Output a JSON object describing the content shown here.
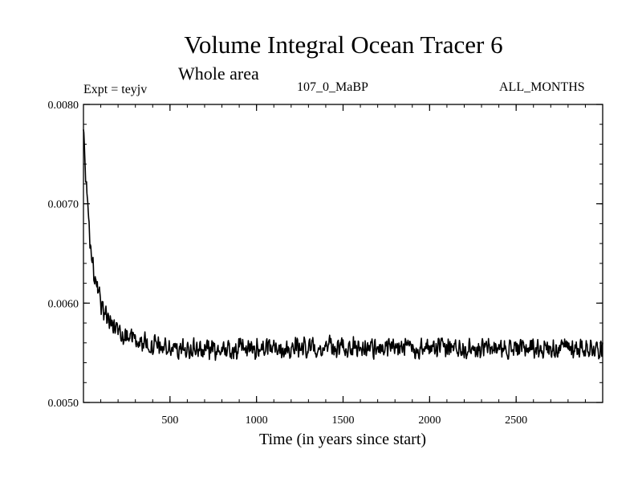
{
  "chart_data": {
    "type": "line",
    "title": "Volume Integral Ocean Tracer 6",
    "subtitle": "Whole area",
    "experiment_label": "Expt = teyjv",
    "run_label": "107_0_MaBP",
    "period_label": "ALL_MONTHS",
    "xlabel": "Time (in years since start)",
    "ylabel": "",
    "xlim": [
      0,
      3000
    ],
    "ylim": [
      0.005,
      0.008
    ],
    "x_ticks": [
      500,
      1000,
      1500,
      2000,
      2500
    ],
    "x_tick_labels": [
      "500",
      "1000",
      "1500",
      "2000",
      "2500"
    ],
    "y_ticks": [
      0.005,
      0.006,
      0.007,
      0.008
    ],
    "y_tick_labels": [
      "0.0050",
      "0.0060",
      "0.0070",
      "0.0080"
    ],
    "x_minor_step": 100,
    "y_minor_step": 0.0002,
    "grid": false,
    "series": [
      {
        "name": "Volume Integral Ocean Tracer 6",
        "color": "#000000",
        "x": [
          0,
          10,
          20,
          30,
          40,
          60,
          80,
          100,
          130,
          160,
          200,
          250,
          300,
          350,
          400,
          450,
          500,
          600,
          700,
          800,
          900,
          1000,
          1200,
          1400,
          1600,
          1800,
          2000,
          2200,
          2400,
          2600,
          2800,
          3000
        ],
        "values": [
          0.00775,
          0.00735,
          0.00705,
          0.0068,
          0.0066,
          0.0063,
          0.00612,
          0.006,
          0.00588,
          0.0058,
          0.00573,
          0.00568,
          0.00563,
          0.0056,
          0.00558,
          0.00556,
          0.00555,
          0.00554,
          0.00554,
          0.00553,
          0.00554,
          0.00554,
          0.00555,
          0.00556,
          0.00555,
          0.00554,
          0.00555,
          0.00555,
          0.00554,
          0.00555,
          0.00555,
          0.00555
        ],
        "noise_amplitude": 0.00012,
        "sample_step": 2.5
      }
    ]
  }
}
